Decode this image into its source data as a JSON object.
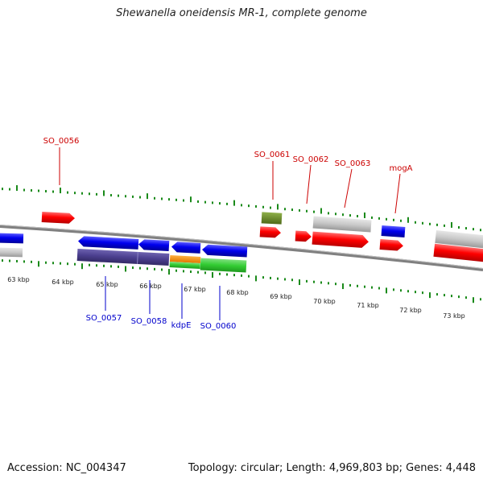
{
  "title": "Shewanella oneidensis MR-1, complete genome",
  "footer": {
    "accession": "Accession: NC_004347",
    "topology": "Topology: circular; Length: 4,969,803 bp; Genes: 4,448"
  },
  "colors": {
    "cds": "#ff0000",
    "cds_dark": "#0000ee",
    "gene": "#c8c8c8",
    "backbone": "#808080",
    "tick": "#1a8a1a",
    "label_top": "#cc0000",
    "label_bottom": "#0000cc",
    "navy": "#4b3f8f",
    "orange": "#ff8c00",
    "green": "#33cc33",
    "olive": "#6b8e23"
  },
  "axis": {
    "labels": [
      "63 kbp",
      "64 kbp",
      "65 kbp",
      "66 kbp",
      "67 kbp",
      "68 kbp",
      "69 kbp",
      "70 kbp",
      "71 kbp",
      "72 kbp",
      "73 kbp"
    ]
  },
  "labels_top": [
    "SO_0056",
    "SO_0061",
    "SO_0062",
    "SO_0063",
    "mogA"
  ],
  "labels_bottom": [
    "SO_0057",
    "SO_0058",
    "kdpE",
    "SO_0060"
  ]
}
